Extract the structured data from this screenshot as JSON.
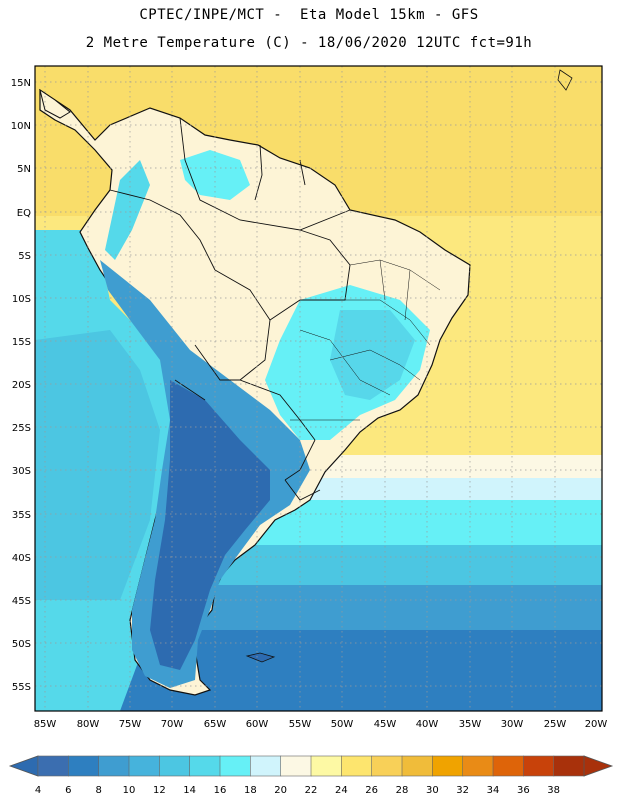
{
  "header": {
    "line1": "CPTEC/INPE/MCT -  Eta Model 15km - GFS",
    "line2": "2 Metre Temperature (C) - 18/06/2020 12UTC fct=91h"
  },
  "map": {
    "region": "South America",
    "lat_labels": [
      "15N",
      "10N",
      "5N",
      "EQ",
      "5S",
      "10S",
      "15S",
      "20S",
      "25S",
      "30S",
      "35S",
      "40S",
      "45S",
      "50S",
      "55S"
    ],
    "lon_labels": [
      "85W",
      "80W",
      "75W",
      "70W",
      "65W",
      "60W",
      "55W",
      "50W",
      "45W",
      "40W",
      "35W",
      "30W",
      "25W",
      "20W"
    ],
    "grid_lines": "dotted",
    "colors": {
      "ocean_warm": "#fce87e",
      "land_warm": "#fdf4d6",
      "cold": "#2d6bb0"
    }
  },
  "colorbar": {
    "labels": [
      "4",
      "6",
      "8",
      "10",
      "12",
      "14",
      "16",
      "18",
      "20",
      "22",
      "24",
      "26",
      "28",
      "30",
      "32",
      "34",
      "36",
      "38"
    ],
    "colors": [
      "#3b6eb0",
      "#2e7fc0",
      "#3f9dd0",
      "#46b3dc",
      "#4cc6e2",
      "#55d9ea",
      "#66f0f6",
      "#d0f4fc",
      "#fcf8e4",
      "#fdf9a4",
      "#fde56e",
      "#f8d058",
      "#f0bc3a",
      "#f0a300",
      "#e98b16",
      "#de6409",
      "#c8420a",
      "#a8310b"
    ]
  }
}
